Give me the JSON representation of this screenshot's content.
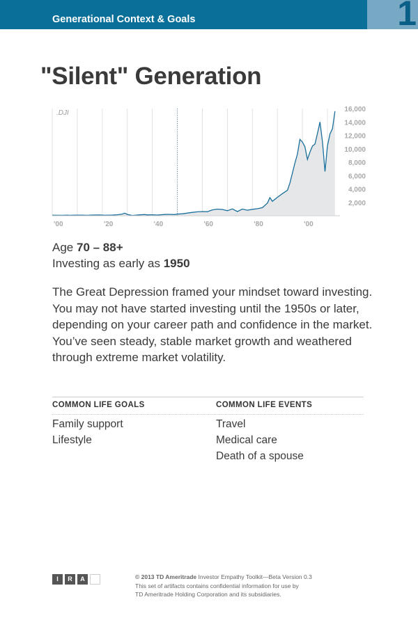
{
  "header": {
    "title": "Generational Context & Goals",
    "page_number": "1"
  },
  "title": "\"Silent\" Generation",
  "chart_data": {
    "type": "area",
    "series_label": ".DJI",
    "x_tick_labels": [
      "'00",
      "'20",
      "'40",
      "'60",
      "'80",
      "'00"
    ],
    "x_ticks": [
      1900,
      1920,
      1940,
      1960,
      1980,
      2000
    ],
    "y_ticks": [
      2000,
      4000,
      6000,
      8000,
      10000,
      12000,
      14000,
      16000
    ],
    "y_tick_labels": [
      "2,000",
      "4,000",
      "6,000",
      "8,000",
      "10,000",
      "12,000",
      "14,000",
      "16,000"
    ],
    "xlim": [
      1900,
      2015
    ],
    "ylim": [
      0,
      16000
    ],
    "grid": true,
    "marker_year": 1950,
    "colors": {
      "line": "#1a6f9c",
      "fill": "#e6e7e8",
      "grid": "#e2e2e2",
      "marker": "#6a8fb5"
    },
    "series": [
      {
        "values": [
          [
            1900,
            70
          ],
          [
            1904,
            60
          ],
          [
            1906,
            95
          ],
          [
            1907,
            60
          ],
          [
            1909,
            95
          ],
          [
            1912,
            85
          ],
          [
            1914,
            60
          ],
          [
            1916,
            105
          ],
          [
            1919,
            110
          ],
          [
            1921,
            70
          ],
          [
            1924,
            100
          ],
          [
            1926,
            150
          ],
          [
            1928,
            250
          ],
          [
            1929,
            380
          ],
          [
            1930,
            200
          ],
          [
            1932,
            45
          ],
          [
            1935,
            140
          ],
          [
            1937,
            180
          ],
          [
            1938,
            120
          ],
          [
            1940,
            150
          ],
          [
            1942,
            105
          ],
          [
            1945,
            190
          ],
          [
            1946,
            210
          ],
          [
            1949,
            175
          ],
          [
            1950,
            235
          ],
          [
            1952,
            290
          ],
          [
            1954,
            400
          ],
          [
            1956,
            500
          ],
          [
            1958,
            580
          ],
          [
            1960,
            620
          ],
          [
            1962,
            600
          ],
          [
            1964,
            870
          ],
          [
            1966,
            990
          ],
          [
            1968,
            940
          ],
          [
            1970,
            750
          ],
          [
            1972,
            1020
          ],
          [
            1974,
            620
          ],
          [
            1976,
            1000
          ],
          [
            1978,
            820
          ],
          [
            1980,
            960
          ],
          [
            1982,
            1050
          ],
          [
            1984,
            1200
          ],
          [
            1986,
            1900
          ],
          [
            1987,
            2700
          ],
          [
            1988,
            2150
          ],
          [
            1990,
            2750
          ],
          [
            1992,
            3300
          ],
          [
            1994,
            3800
          ],
          [
            1995,
            4900
          ],
          [
            1996,
            6400
          ],
          [
            1997,
            7900
          ],
          [
            1998,
            9200
          ],
          [
            1999,
            11400
          ],
          [
            2000,
            11000
          ],
          [
            2001,
            10300
          ],
          [
            2002,
            8400
          ],
          [
            2003,
            9500
          ],
          [
            2004,
            10400
          ],
          [
            2005,
            10700
          ],
          [
            2006,
            12300
          ],
          [
            2007,
            14000
          ],
          [
            2008,
            11000
          ],
          [
            2009,
            6600
          ],
          [
            2010,
            10400
          ],
          [
            2011,
            12200
          ],
          [
            2012,
            13000
          ],
          [
            2013,
            15600
          ]
        ]
      }
    ]
  },
  "profile": {
    "age_prefix": "Age",
    "age_range": "70 – 88+",
    "investing_prefix": "Investing as early as",
    "investing_year": "1950"
  },
  "description": "The Great Depression framed your mindset toward investing. You may not have started investing until the 1950s or later, depending on your career path and confidence in the market. You’ve seen steady, stable market growth and weathered through extreme market volatility.",
  "goals": {
    "heading": "COMMON LIFE GOALS",
    "items": [
      "Family support",
      "Lifestyle"
    ]
  },
  "events": {
    "heading": "COMMON LIFE EVENTS",
    "items": [
      "Travel",
      "Medical care",
      "Death of a spouse"
    ]
  },
  "footer": {
    "logo_letters": [
      "I",
      "R",
      "A",
      ""
    ],
    "copyright": "© 2013 TD Ameritrade",
    "toolkit": " Investor Empathy Toolkit—Beta Version 0.3",
    "line2": "This set of artifacts contains confidential information for use by",
    "line3": "TD Ameritrade Holding Corporation and its subsidiaries."
  }
}
